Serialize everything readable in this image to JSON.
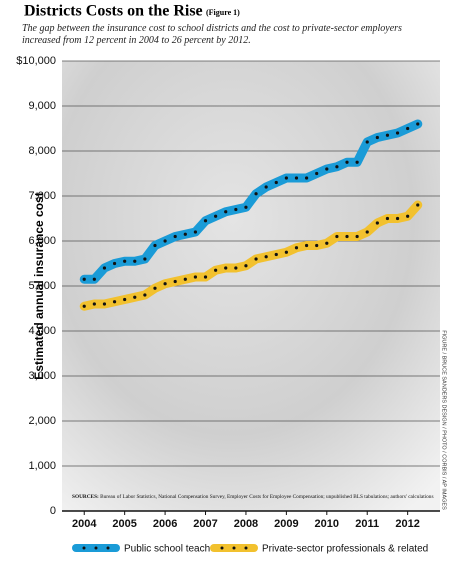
{
  "chart_data": {
    "type": "line",
    "title": "Districts Costs on the Rise",
    "title_note": "(Figure 1)",
    "subtitle": "The gap between the insurance cost to school districts and the cost to private-sector employers increased from 12 percent in 2004 to 26 percent by 2012.",
    "y_label": "Estimated annual insurance cost",
    "sources_label": "SOURCES:",
    "sources": "Bureau of Labor Statistics, National Compensation Survey, Employer Costs for Employee Compensation; unpublished BLS tabulations; authors' calculations",
    "credit": "FIGURE / BRUCE SANDERS DESIGN / PHOTO / CORBIS / AP IMAGES",
    "x": [
      2004,
      2004.25,
      2004.5,
      2004.75,
      2005,
      2005.25,
      2005.5,
      2005.75,
      2006,
      2006.25,
      2006.5,
      2006.75,
      2007,
      2007.25,
      2007.5,
      2007.75,
      2008,
      2008.25,
      2008.5,
      2008.75,
      2009,
      2009.25,
      2009.5,
      2009.75,
      2010,
      2010.25,
      2010.5,
      2010.75,
      2011,
      2011.25,
      2011.5,
      2011.75,
      2012,
      2012.25
    ],
    "series": [
      {
        "name": "Public school teachers",
        "color": "#1a9bd7",
        "values": [
          5150,
          5150,
          5400,
          5500,
          5550,
          5550,
          5600,
          5900,
          6000,
          6100,
          6150,
          6200,
          6450,
          6550,
          6650,
          6700,
          6750,
          7050,
          7200,
          7300,
          7400,
          7400,
          7400,
          7500,
          7600,
          7650,
          7750,
          7750,
          8200,
          8300,
          8350,
          8400,
          8500,
          8600
        ]
      },
      {
        "name": "Private-sector professionals & related",
        "color": "#f2c12e",
        "values": [
          4550,
          4600,
          4600,
          4650,
          4700,
          4750,
          4800,
          4950,
          5050,
          5100,
          5150,
          5200,
          5200,
          5350,
          5400,
          5400,
          5450,
          5600,
          5650,
          5700,
          5750,
          5850,
          5900,
          5900,
          5950,
          6100,
          6100,
          6100,
          6200,
          6400,
          6500,
          6500,
          6550,
          6800
        ]
      }
    ],
    "xlim": [
      2003.45,
      2012.8
    ],
    "xticks": [
      2004,
      2005,
      2006,
      2007,
      2008,
      2009,
      2010,
      2011,
      2012
    ],
    "ylim": [
      0,
      10000
    ],
    "yticks": [
      0,
      {
        "value": 1000,
        "label": "1,000"
      },
      {
        "value": 2000,
        "label": "2,000"
      },
      {
        "value": 3000,
        "label": "3,000"
      },
      {
        "value": 4000,
        "label": "4,000"
      },
      {
        "value": 5000,
        "label": "5,000"
      },
      {
        "value": 6000,
        "label": "6,000"
      },
      {
        "value": 7000,
        "label": "7,000"
      },
      {
        "value": 8000,
        "label": "8,000"
      },
      {
        "value": 9000,
        "label": "9,000"
      },
      {
        "value": 10000,
        "label": "$10,000"
      }
    ],
    "grid": true
  }
}
